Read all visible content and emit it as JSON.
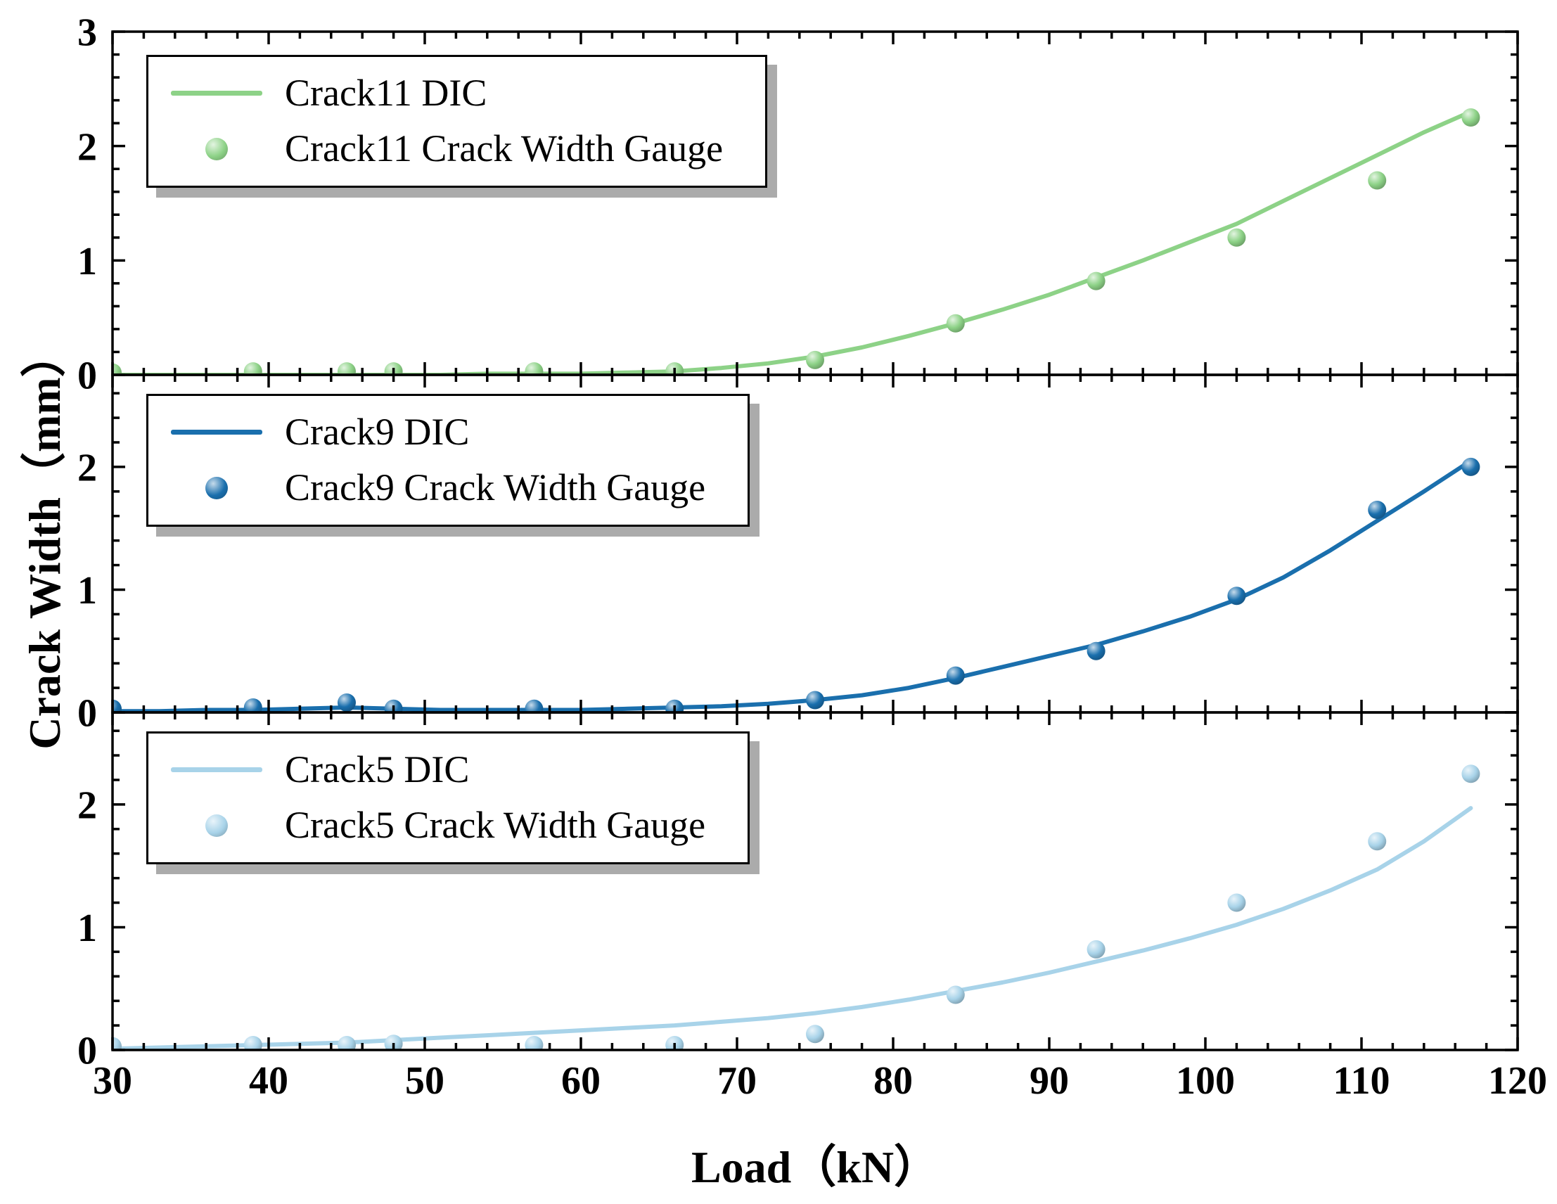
{
  "chart_data": {
    "type": "line",
    "title": "",
    "x_axis": {
      "label": "Load（kN）",
      "lim": [
        30,
        120
      ],
      "ticks": [
        30,
        40,
        50,
        60,
        70,
        80,
        90,
        100,
        110,
        120
      ],
      "minor_step": 2
    },
    "y_axis_label": "Crack Width（mm）",
    "subplots": [
      {
        "name": "Crack11",
        "color": "#8dd287",
        "ylim": [
          0,
          3
        ],
        "yticks": [
          0,
          1,
          2,
          3
        ],
        "y_minor_step": 0.2,
        "legend": {
          "line_label": "Crack11 DIC",
          "marker_label": "Crack11 Crack Width Gauge"
        },
        "dic_line": {
          "x": [
            30,
            33,
            36,
            39,
            42,
            45,
            48,
            51,
            54,
            57,
            60,
            63,
            66,
            69,
            72,
            75,
            78,
            81,
            84,
            87,
            90,
            93,
            96,
            99,
            102,
            105,
            108,
            111,
            114,
            117
          ],
          "y": [
            0,
            0,
            0,
            0,
            0,
            0,
            0,
            0,
            0.01,
            0.01,
            0.01,
            0.02,
            0.03,
            0.06,
            0.1,
            0.16,
            0.24,
            0.34,
            0.45,
            0.57,
            0.7,
            0.85,
            1.0,
            1.16,
            1.32,
            1.52,
            1.72,
            1.92,
            2.12,
            2.3
          ]
        },
        "gauge": {
          "x": [
            30,
            39,
            45,
            48,
            57,
            66,
            75,
            84,
            93,
            102,
            111,
            117
          ],
          "y": [
            0.02,
            0.03,
            0.03,
            0.03,
            0.03,
            0.03,
            0.13,
            0.45,
            0.82,
            1.2,
            1.7,
            2.25
          ]
        }
      },
      {
        "name": "Crack9",
        "color": "#1a6fad",
        "ylim": [
          0,
          2.75
        ],
        "yticks": [
          0,
          1,
          2
        ],
        "y_minor_step": 0.2,
        "legend": {
          "line_label": "Crack9 DIC",
          "marker_label": "Crack9 Crack Width Gauge"
        },
        "dic_line": {
          "x": [
            30,
            33,
            36,
            39,
            42,
            45,
            48,
            51,
            54,
            57,
            60,
            63,
            66,
            69,
            72,
            75,
            78,
            81,
            84,
            87,
            90,
            93,
            96,
            99,
            102,
            105,
            108,
            111,
            114,
            117
          ],
          "y": [
            0.01,
            0.01,
            0.02,
            0.02,
            0.03,
            0.04,
            0.03,
            0.02,
            0.02,
            0.02,
            0.02,
            0.03,
            0.04,
            0.05,
            0.07,
            0.1,
            0.14,
            0.2,
            0.28,
            0.37,
            0.46,
            0.55,
            0.66,
            0.78,
            0.92,
            1.1,
            1.32,
            1.56,
            1.8,
            2.05
          ]
        },
        "gauge": {
          "x": [
            30,
            39,
            45,
            48,
            57,
            66,
            75,
            84,
            93,
            102,
            111,
            117
          ],
          "y": [
            0.03,
            0.04,
            0.08,
            0.03,
            0.03,
            0.03,
            0.1,
            0.3,
            0.5,
            0.95,
            1.65,
            2.0
          ]
        }
      },
      {
        "name": "Crack5",
        "color": "#a8d3e9",
        "ylim": [
          0,
          2.75
        ],
        "yticks": [
          0,
          1,
          2
        ],
        "y_minor_step": 0.2,
        "legend": {
          "line_label": "Crack5 DIC",
          "marker_label": "Crack5 Crack Width Gauge"
        },
        "dic_line": {
          "x": [
            30,
            33,
            36,
            39,
            42,
            45,
            48,
            51,
            54,
            57,
            60,
            63,
            66,
            69,
            72,
            75,
            78,
            81,
            84,
            87,
            90,
            93,
            96,
            99,
            102,
            105,
            108,
            111,
            114,
            117
          ],
          "y": [
            0.01,
            0.02,
            0.03,
            0.04,
            0.05,
            0.06,
            0.08,
            0.1,
            0.12,
            0.14,
            0.16,
            0.18,
            0.2,
            0.23,
            0.26,
            0.3,
            0.35,
            0.41,
            0.48,
            0.55,
            0.63,
            0.72,
            0.81,
            0.91,
            1.02,
            1.15,
            1.3,
            1.47,
            1.7,
            1.97
          ]
        },
        "gauge": {
          "x": [
            30,
            39,
            45,
            48,
            57,
            66,
            75,
            84,
            93,
            102,
            111,
            117
          ],
          "y": [
            0.03,
            0.04,
            0.04,
            0.05,
            0.04,
            0.04,
            0.13,
            0.45,
            0.82,
            1.2,
            1.7,
            2.25
          ]
        }
      }
    ]
  }
}
